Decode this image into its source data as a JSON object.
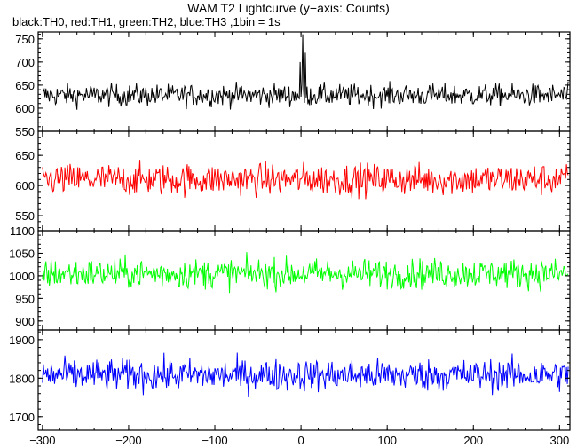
{
  "chart_data": {
    "type": "line",
    "title": "WAM T2 Lightcurve (y−axis: Counts)",
    "subtitle": "black:TH0, red:TH1, green:TH2, blue:TH3 ,1bin = 1s",
    "xlim": [
      -305,
      312
    ],
    "x_ticks": [
      -300,
      -200,
      -100,
      0,
      100,
      200,
      300
    ],
    "x_tick_labels": [
      "−300",
      "−200",
      "−100",
      "0",
      "100",
      "200",
      "300"
    ],
    "grid": false,
    "panels": [
      {
        "series_color": "#000000",
        "ylim": [
          550,
          765
        ],
        "y_ticks": [
          550,
          600,
          650,
          700,
          750
        ],
        "baseline": 628,
        "noise": 22,
        "peaks": [
          {
            "x": 2,
            "value": 760
          },
          {
            "x": 5,
            "value": 720
          },
          {
            "x": -1,
            "value": 700
          }
        ]
      },
      {
        "series_color": "#ff0000",
        "ylim": [
          525,
          690
        ],
        "y_ticks": [
          550,
          600,
          650
        ],
        "baseline": 610,
        "noise": 24,
        "peaks": []
      },
      {
        "series_color": "#00ff00",
        "ylim": [
          880,
          1100
        ],
        "y_ticks": [
          900,
          950,
          1000,
          1050,
          1100
        ],
        "baseline": 1005,
        "noise": 30,
        "peaks": []
      },
      {
        "series_color": "#0000ff",
        "ylim": [
          1665,
          1925
        ],
        "y_ticks": [
          1700,
          1800,
          1900
        ],
        "baseline": 1808,
        "noise": 38,
        "peaks": []
      }
    ]
  }
}
